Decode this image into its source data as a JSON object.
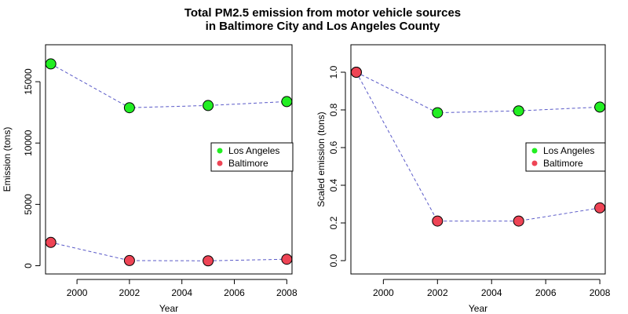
{
  "title": {
    "line1": "Total PM2.5 emission from motor vehicle sources",
    "line2": "in Baltimore City and Los Angeles County"
  },
  "colors": {
    "line": "#5a5ac8",
    "los_angeles": "#22ee22",
    "baltimore": "#ee4455"
  },
  "chart_data": [
    {
      "type": "line",
      "xlabel": "Year",
      "ylabel": "Emission (tons)",
      "x": [
        1999,
        2002,
        2005,
        2008
      ],
      "xlim": [
        1998.8,
        2008.2
      ],
      "ylim": [
        0,
        16700
      ],
      "xticks": [
        2000,
        2002,
        2004,
        2006,
        2008
      ],
      "yticks": [
        0,
        5000,
        10000,
        15000
      ],
      "legend_position": "right",
      "grid": false,
      "series": [
        {
          "name": "Los Angeles",
          "values": [
            16450,
            12880,
            13060,
            13380
          ]
        },
        {
          "name": "Baltimore",
          "values": [
            1900,
            420,
            400,
            530
          ]
        }
      ]
    },
    {
      "type": "line",
      "xlabel": "Year",
      "ylabel": "Scaled emission (tons)",
      "x": [
        1999,
        2002,
        2005,
        2008
      ],
      "xlim": [
        1998.8,
        2008.2
      ],
      "ylim": [
        0,
        1.0
      ],
      "xticks": [
        2000,
        2002,
        2004,
        2006,
        2008
      ],
      "yticks": [
        0.0,
        0.2,
        0.4,
        0.6,
        0.8,
        1.0
      ],
      "legend_position": "right",
      "grid": false,
      "series": [
        {
          "name": "Los Angeles",
          "values": [
            1.0,
            0.785,
            0.795,
            0.815
          ]
        },
        {
          "name": "Baltimore",
          "values": [
            1.0,
            0.21,
            0.21,
            0.28
          ]
        }
      ]
    }
  ]
}
